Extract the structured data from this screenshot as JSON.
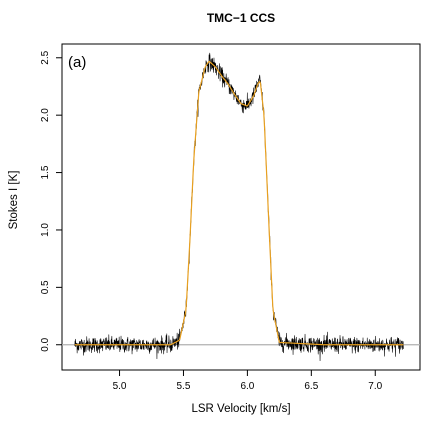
{
  "chart_data": {
    "type": "line",
    "title": "TMC−1 CCS",
    "panel_tag": "(a)",
    "xlabel": "LSR Velocity [km/s]",
    "ylabel": "Stokes I [K]",
    "xlim": [
      4.55,
      7.35
    ],
    "ylim": [
      -0.22,
      2.62
    ],
    "x_ticks": [
      5.0,
      5.5,
      6.0,
      6.5,
      7.0
    ],
    "x_tick_labels": [
      "5.0",
      "5.5",
      "6.0",
      "6.5",
      "7.0"
    ],
    "y_ticks": [
      0.0,
      0.5,
      1.0,
      1.5,
      2.0,
      2.5
    ],
    "y_tick_labels": [
      "0.0",
      "0.5",
      "1.0",
      "1.5",
      "2.0",
      "2.5"
    ],
    "zero_line": 0.0,
    "series": [
      {
        "role": "observed",
        "color": "#000000",
        "noise_rms": 0.035,
        "x": [
          4.65,
          5.0,
          5.4,
          5.47,
          5.52,
          5.55,
          5.58,
          5.62,
          5.67,
          5.7,
          5.75,
          5.8,
          5.85,
          5.9,
          5.95,
          6.0,
          6.05,
          6.08,
          6.1,
          6.13,
          6.17,
          6.2,
          6.25,
          6.6,
          7.0,
          7.22
        ],
        "y": [
          0.0,
          0.0,
          0.0,
          0.04,
          0.3,
          0.9,
          1.6,
          2.2,
          2.42,
          2.47,
          2.42,
          2.34,
          2.27,
          2.18,
          2.1,
          2.08,
          2.17,
          2.27,
          2.3,
          2.0,
          1.0,
          0.3,
          0.02,
          0.0,
          0.0,
          0.0
        ]
      },
      {
        "role": "model",
        "color": "#e8a020",
        "x": [
          4.65,
          5.0,
          5.4,
          5.47,
          5.52,
          5.55,
          5.58,
          5.62,
          5.67,
          5.7,
          5.75,
          5.8,
          5.85,
          5.9,
          5.95,
          6.0,
          6.05,
          6.08,
          6.1,
          6.13,
          6.17,
          6.2,
          6.25,
          6.6,
          7.0,
          7.22
        ],
        "y": [
          0.0,
          0.0,
          0.0,
          0.04,
          0.3,
          0.9,
          1.6,
          2.2,
          2.42,
          2.47,
          2.42,
          2.34,
          2.27,
          2.18,
          2.1,
          2.08,
          2.17,
          2.27,
          2.3,
          2.0,
          1.0,
          0.3,
          0.02,
          0.0,
          0.0,
          0.0
        ]
      }
    ],
    "grid": false,
    "zero_line_color": "#b0b0b0",
    "axis_color": "#000000"
  }
}
